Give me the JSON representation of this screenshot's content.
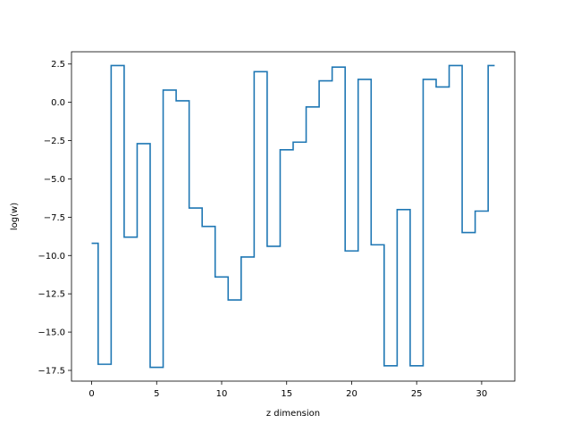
{
  "chart_data": {
    "type": "line",
    "drawstyle": "steps-mid",
    "title": "",
    "xlabel": "z dimension",
    "ylabel": "log(w)",
    "xlim": [
      -1.55,
      32.55
    ],
    "ylim": [
      -18.2,
      3.3
    ],
    "xticks": [
      0,
      5,
      10,
      15,
      20,
      25,
      30
    ],
    "xtick_labels": [
      "0",
      "5",
      "10",
      "15",
      "20",
      "25",
      "30"
    ],
    "yticks": [
      2.5,
      0.0,
      -2.5,
      -5.0,
      -7.5,
      -10.0,
      -12.5,
      -15.0,
      -17.5
    ],
    "ytick_labels": [
      "2.5",
      "0.0",
      "−2.5",
      "−5.0",
      "−7.5",
      "−10.0",
      "−12.5",
      "−15.0",
      "−17.5"
    ],
    "grid": false,
    "legend": "none",
    "line_color": "#1f77b4",
    "x": [
      0,
      1,
      2,
      3,
      4,
      5,
      6,
      7,
      8,
      9,
      10,
      11,
      12,
      13,
      14,
      15,
      16,
      17,
      18,
      19,
      20,
      21,
      22,
      23,
      24,
      25,
      26,
      27,
      28,
      29,
      30,
      31
    ],
    "y": [
      -9.2,
      -17.1,
      2.4,
      -8.8,
      -2.7,
      -17.3,
      0.8,
      0.1,
      -6.9,
      -8.1,
      -11.4,
      -12.9,
      -10.1,
      2.0,
      -9.4,
      -3.1,
      -2.6,
      -0.3,
      1.4,
      2.3,
      -9.7,
      1.5,
      -9.3,
      -17.2,
      -7.0,
      -17.2,
      1.5,
      1.0,
      2.4,
      -8.5,
      -7.1,
      2.4
    ]
  }
}
